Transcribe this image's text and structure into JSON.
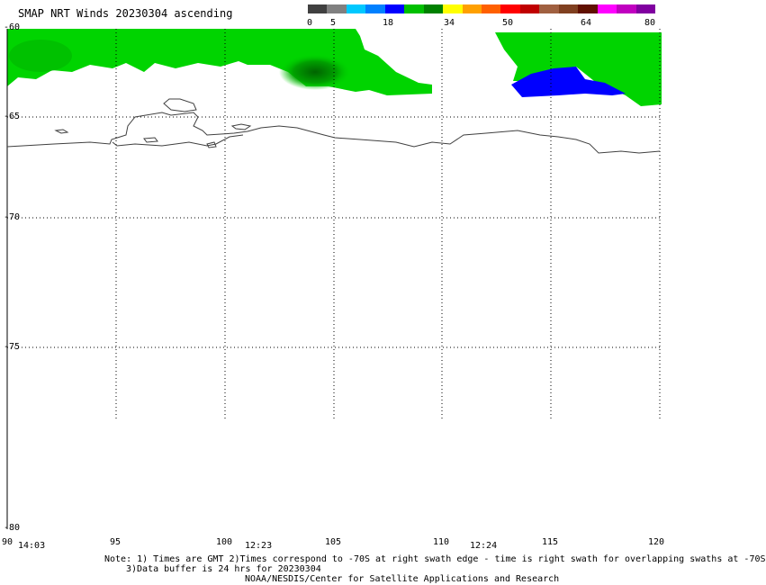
{
  "title": "SMAP NRT Winds 20230304 ascending",
  "colorbar": {
    "ticks": [
      "0",
      "5",
      "18",
      "34",
      "50",
      "64",
      "80"
    ],
    "colors": [
      "#404040",
      "#808080",
      "#00c8ff",
      "#0080ff",
      "#0000ff",
      "#00c000",
      "#008000",
      "#ffff00",
      "#ffa000",
      "#ff6000",
      "#ff0000",
      "#c00000",
      "#a06040",
      "#804020",
      "#601000",
      "#ff00ff",
      "#c000c0",
      "#8000a0"
    ]
  },
  "lat_labels": [
    "-60",
    "-65",
    "-70",
    "-75",
    "-80"
  ],
  "lon_labels": [
    "90",
    "95",
    "100",
    "105",
    "110",
    "115",
    "120"
  ],
  "times": [
    "14:03",
    "12:23",
    "12:24"
  ],
  "notes": {
    "line1": "Note: 1) Times are GMT 2)Times correspond to -70S at right swath edge - time is right swath for overlapping swaths at -70S",
    "line2": "3)Data buffer is 24 hrs for 20230304",
    "line3": "NOAA/NESDIS/Center for Satellite Applications and Research"
  }
}
